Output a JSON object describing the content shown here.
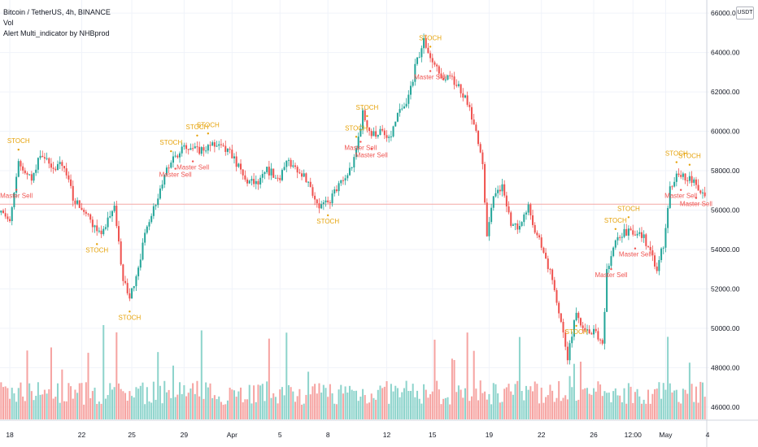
{
  "legend": {
    "symbol": "Bitcoin / TetherUS, 4h, BINANCE",
    "volume": "Vol",
    "indicator": "Alert Multi_indicator by NHBprod"
  },
  "currency_button": "USDT",
  "colors": {
    "up": "#26a69a",
    "down": "#ef5350",
    "volume_up": "#8ed4cc",
    "volume_down": "#f6a4a2",
    "stoch": "#e6a30b",
    "master_sell": "#ef5350",
    "grid": "#f0f3fa",
    "axis_text": "#131722",
    "price_line": "#f4a8a6"
  },
  "chart_data": {
    "type": "candlestick",
    "timeframe": "4h",
    "x_tick_labels": [
      "18",
      "22",
      "25",
      "29",
      "Apr",
      "5",
      "8",
      "12",
      "15",
      "19",
      "22",
      "26",
      "12:00",
      "May",
      "4"
    ],
    "y_tick_labels": [
      "46000.00",
      "48000.00",
      "50000.00",
      "52000.00",
      "54000.00",
      "56000.00",
      "58000.00",
      "60000.00",
      "62000.00",
      "64000.00",
      "66000.00"
    ],
    "ylim": [
      45500,
      66500
    ],
    "current_price_line": 56300,
    "price_path": [
      {
        "i": 0,
        "p": 56200
      },
      {
        "i": 4,
        "p": 55300
      },
      {
        "i": 8,
        "p": 58300
      },
      {
        "i": 14,
        "p": 57600
      },
      {
        "i": 18,
        "p": 58900
      },
      {
        "i": 24,
        "p": 58000
      },
      {
        "i": 28,
        "p": 58400
      },
      {
        "i": 33,
        "p": 56700
      },
      {
        "i": 40,
        "p": 55600
      },
      {
        "i": 46,
        "p": 54600
      },
      {
        "i": 52,
        "p": 56300
      },
      {
        "i": 56,
        "p": 52400
      },
      {
        "i": 59,
        "p": 51500
      },
      {
        "i": 63,
        "p": 53200
      },
      {
        "i": 68,
        "p": 55600
      },
      {
        "i": 72,
        "p": 56700
      },
      {
        "i": 78,
        "p": 58600
      },
      {
        "i": 83,
        "p": 59100
      },
      {
        "i": 90,
        "p": 59000
      },
      {
        "i": 96,
        "p": 59300
      },
      {
        "i": 100,
        "p": 59200
      },
      {
        "i": 106,
        "p": 58800
      },
      {
        "i": 112,
        "p": 57500
      },
      {
        "i": 118,
        "p": 57300
      },
      {
        "i": 122,
        "p": 58000
      },
      {
        "i": 128,
        "p": 57700
      },
      {
        "i": 132,
        "p": 58500
      },
      {
        "i": 138,
        "p": 57900
      },
      {
        "i": 142,
        "p": 57100
      },
      {
        "i": 146,
        "p": 56200
      },
      {
        "i": 150,
        "p": 56300
      },
      {
        "i": 154,
        "p": 57100
      },
      {
        "i": 158,
        "p": 57600
      },
      {
        "i": 162,
        "p": 58500
      },
      {
        "i": 166,
        "p": 60900
      },
      {
        "i": 170,
        "p": 59800
      },
      {
        "i": 174,
        "p": 60000
      },
      {
        "i": 178,
        "p": 59500
      },
      {
        "i": 182,
        "p": 60800
      },
      {
        "i": 186,
        "p": 61300
      },
      {
        "i": 190,
        "p": 63200
      },
      {
        "i": 194,
        "p": 64600
      },
      {
        "i": 198,
        "p": 63500
      },
      {
        "i": 202,
        "p": 62800
      },
      {
        "i": 206,
        "p": 62700
      },
      {
        "i": 210,
        "p": 62300
      },
      {
        "i": 214,
        "p": 61500
      },
      {
        "i": 218,
        "p": 60000
      },
      {
        "i": 221,
        "p": 58500
      },
      {
        "i": 223,
        "p": 54700
      },
      {
        "i": 226,
        "p": 56600
      },
      {
        "i": 230,
        "p": 57300
      },
      {
        "i": 234,
        "p": 55300
      },
      {
        "i": 238,
        "p": 55000
      },
      {
        "i": 242,
        "p": 56200
      },
      {
        "i": 246,
        "p": 54700
      },
      {
        "i": 250,
        "p": 53600
      },
      {
        "i": 254,
        "p": 52100
      },
      {
        "i": 258,
        "p": 49700
      },
      {
        "i": 260,
        "p": 48600
      },
      {
        "i": 264,
        "p": 50900
      },
      {
        "i": 268,
        "p": 49700
      },
      {
        "i": 272,
        "p": 49900
      },
      {
        "i": 276,
        "p": 49100
      },
      {
        "i": 278,
        "p": 53000
      },
      {
        "i": 282,
        "p": 54300
      },
      {
        "i": 286,
        "p": 55000
      },
      {
        "i": 290,
        "p": 54700
      },
      {
        "i": 294,
        "p": 54800
      },
      {
        "i": 298,
        "p": 53800
      },
      {
        "i": 301,
        "p": 53000
      },
      {
        "i": 304,
        "p": 54300
      },
      {
        "i": 307,
        "p": 57000
      },
      {
        "i": 310,
        "p": 57900
      },
      {
        "i": 314,
        "p": 57700
      },
      {
        "i": 318,
        "p": 57500
      },
      {
        "i": 321,
        "p": 56900
      },
      {
        "i": 323,
        "p": 56600
      }
    ],
    "signals": [
      {
        "i": 8,
        "label": "STOCH",
        "pos": "above"
      },
      {
        "i": 7,
        "label": "Master Sell",
        "pos": "below"
      },
      {
        "i": 44,
        "label": "STOCH",
        "pos": "below"
      },
      {
        "i": 59,
        "label": "STOCH",
        "pos": "below"
      },
      {
        "i": 78,
        "label": "STOCH",
        "pos": "above"
      },
      {
        "i": 88,
        "label": "Master Sell",
        "pos": "below"
      },
      {
        "i": 95,
        "label": "STOCH",
        "pos": "above"
      },
      {
        "i": 90,
        "label": "STOCH",
        "pos": "above"
      },
      {
        "i": 80,
        "label": "Master Sell",
        "pos": "below"
      },
      {
        "i": 150,
        "label": "STOCH",
        "pos": "below"
      },
      {
        "i": 163,
        "label": "STOCH",
        "pos": "above"
      },
      {
        "i": 170,
        "label": "Master Sell",
        "pos": "below"
      },
      {
        "i": 165,
        "label": "Master Sell",
        "pos": "below"
      },
      {
        "i": 168,
        "label": "STOCH",
        "pos": "above"
      },
      {
        "i": 197,
        "label": "STOCH",
        "pos": "above"
      },
      {
        "i": 197,
        "label": "Master Sell",
        "pos": "below"
      },
      {
        "i": 264,
        "label": "STOCH",
        "pos": "below"
      },
      {
        "i": 282,
        "label": "STOCH",
        "pos": "above"
      },
      {
        "i": 288,
        "label": "STOCH",
        "pos": "above"
      },
      {
        "i": 280,
        "label": "Master Sell",
        "pos": "below"
      },
      {
        "i": 291,
        "label": "Master Sell",
        "pos": "below"
      },
      {
        "i": 310,
        "label": "STOCH",
        "pos": "above"
      },
      {
        "i": 316,
        "label": "STOCH",
        "pos": "above"
      },
      {
        "i": 312,
        "label": "Master Sell",
        "pos": "below"
      },
      {
        "i": 319,
        "label": "Master Sell",
        "pos": "below"
      }
    ]
  }
}
